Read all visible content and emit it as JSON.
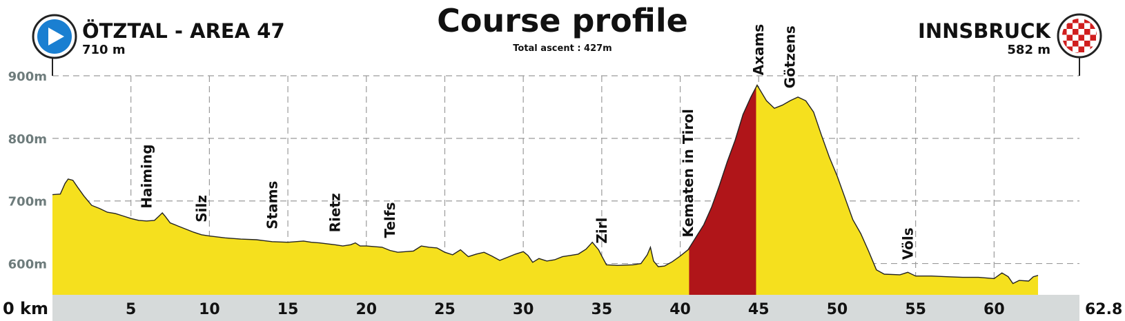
{
  "chart_data": {
    "type": "area",
    "title": "Course profile",
    "subtitle": "Total ascent : 427m",
    "start": {
      "name": "ÖTZTAL - AREA 47",
      "altitude": "710 m"
    },
    "finish": {
      "name": "INNSBRUCK",
      "altitude": "582 m"
    },
    "start_icon": "play-icon",
    "finish_icon": "checkered-flag-icon",
    "xlim": [
      0,
      62.8
    ],
    "ylim": [
      550,
      900
    ],
    "x_unit_label": "0 km",
    "x_end_label": "62.8",
    "x_ticks": [
      5,
      10,
      15,
      20,
      25,
      30,
      35,
      40,
      45,
      50,
      55,
      60
    ],
    "y_ticks": [
      {
        "value": 600,
        "label": "600m"
      },
      {
        "value": 700,
        "label": "700m"
      },
      {
        "value": 800,
        "label": "800m"
      },
      {
        "value": 900,
        "label": "900m"
      }
    ],
    "grid": true,
    "colors": {
      "profile_fill": "#f5e01e",
      "climb_fill": "#b01519",
      "outline": "#222222",
      "axis_band": "#d6dada",
      "grid": "#9a9a9a",
      "ytick_text": "#6e7c7c",
      "start_icon_bg": "#1a7fd1",
      "finish_icon_bg": "#d01e1e"
    },
    "climb": {
      "start_km": 40.5,
      "end_km": 44.9
    },
    "profile": [
      [
        0,
        710
      ],
      [
        0.5,
        711
      ],
      [
        0.8,
        728
      ],
      [
        1.0,
        735
      ],
      [
        1.3,
        733
      ],
      [
        1.6,
        722
      ],
      [
        2.0,
        708
      ],
      [
        2.5,
        693
      ],
      [
        3.0,
        688
      ],
      [
        3.5,
        682
      ],
      [
        4.0,
        680
      ],
      [
        4.5,
        676
      ],
      [
        5.0,
        672
      ],
      [
        5.5,
        669
      ],
      [
        6.0,
        668
      ],
      [
        6.5,
        669
      ],
      [
        6.8,
        676
      ],
      [
        7.0,
        681
      ],
      [
        7.2,
        675
      ],
      [
        7.5,
        665
      ],
      [
        8.0,
        660
      ],
      [
        8.5,
        655
      ],
      [
        9.0,
        650
      ],
      [
        9.5,
        646
      ],
      [
        10.0,
        644
      ],
      [
        11.0,
        641
      ],
      [
        12.0,
        639
      ],
      [
        13.0,
        638
      ],
      [
        14.0,
        635
      ],
      [
        15.0,
        634
      ],
      [
        16.0,
        636
      ],
      [
        16.5,
        634
      ],
      [
        17.0,
        633
      ],
      [
        18.0,
        630
      ],
      [
        18.5,
        628
      ],
      [
        19.0,
        630
      ],
      [
        19.3,
        633
      ],
      [
        19.6,
        628
      ],
      [
        20.0,
        628
      ],
      [
        21.0,
        626
      ],
      [
        21.5,
        621
      ],
      [
        22.0,
        618
      ],
      [
        23.0,
        620
      ],
      [
        23.5,
        628
      ],
      [
        24.0,
        626
      ],
      [
        24.5,
        625
      ],
      [
        25.0,
        618
      ],
      [
        25.5,
        614
      ],
      [
        26.0,
        622
      ],
      [
        26.5,
        611
      ],
      [
        27.0,
        615
      ],
      [
        27.5,
        618
      ],
      [
        28.0,
        612
      ],
      [
        28.5,
        605
      ],
      [
        29.0,
        610
      ],
      [
        29.5,
        615
      ],
      [
        30.0,
        619
      ],
      [
        30.3,
        613
      ],
      [
        30.6,
        602
      ],
      [
        31.0,
        608
      ],
      [
        31.5,
        604
      ],
      [
        32.0,
        606
      ],
      [
        32.5,
        611
      ],
      [
        33.0,
        613
      ],
      [
        33.5,
        615
      ],
      [
        34.0,
        623
      ],
      [
        34.4,
        634
      ],
      [
        34.8,
        622
      ],
      [
        35.0,
        612
      ],
      [
        35.3,
        598
      ],
      [
        36.0,
        597
      ],
      [
        37.0,
        598
      ],
      [
        37.5,
        600
      ],
      [
        37.9,
        614
      ],
      [
        38.1,
        626
      ],
      [
        38.3,
        604
      ],
      [
        38.6,
        595
      ],
      [
        39.0,
        596
      ],
      [
        39.5,
        603
      ],
      [
        40.0,
        612
      ],
      [
        40.5,
        622
      ],
      [
        41.0,
        642
      ],
      [
        41.5,
        662
      ],
      [
        42.0,
        690
      ],
      [
        42.5,
        725
      ],
      [
        43.0,
        763
      ],
      [
        43.5,
        797
      ],
      [
        44.0,
        838
      ],
      [
        44.5,
        866
      ],
      [
        44.9,
        885
      ],
      [
        45.5,
        860
      ],
      [
        46.0,
        848
      ],
      [
        46.5,
        853
      ],
      [
        47.0,
        860
      ],
      [
        47.5,
        866
      ],
      [
        48.0,
        860
      ],
      [
        48.5,
        842
      ],
      [
        49.0,
        805
      ],
      [
        49.5,
        770
      ],
      [
        50.0,
        740
      ],
      [
        50.5,
        705
      ],
      [
        51.0,
        670
      ],
      [
        51.5,
        648
      ],
      [
        52.0,
        620
      ],
      [
        52.5,
        590
      ],
      [
        53.0,
        583
      ],
      [
        54.0,
        582
      ],
      [
        54.5,
        586
      ],
      [
        55.0,
        580
      ],
      [
        56.0,
        580
      ],
      [
        57.0,
        579
      ],
      [
        58.0,
        578
      ],
      [
        59.0,
        578
      ],
      [
        60.0,
        576
      ],
      [
        60.5,
        585
      ],
      [
        60.9,
        579
      ],
      [
        61.2,
        568
      ],
      [
        61.6,
        573
      ],
      [
        62.2,
        572
      ],
      [
        62.5,
        579
      ],
      [
        62.8,
        581
      ]
    ],
    "places": [
      {
        "name": "Haiming",
        "km": 6.0
      },
      {
        "name": "Silz",
        "km": 9.5
      },
      {
        "name": "Stams",
        "km": 14.0
      },
      {
        "name": "Rietz",
        "km": 18.0
      },
      {
        "name": "Telfs",
        "km": 21.5
      },
      {
        "name": "Zirl",
        "km": 35.0
      },
      {
        "name": "Kematen in Tirol",
        "km": 40.5
      },
      {
        "name": "Axams",
        "km": 45.0
      },
      {
        "name": "Götzens",
        "km": 47.0
      },
      {
        "name": "Völs",
        "km": 54.5
      }
    ]
  }
}
